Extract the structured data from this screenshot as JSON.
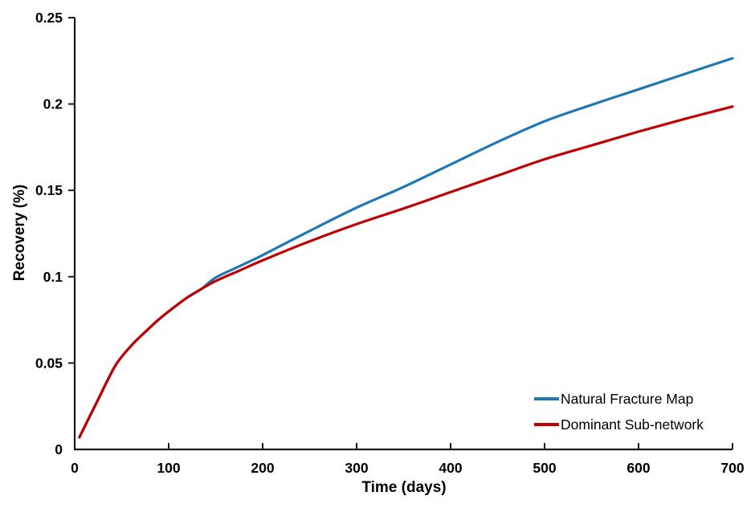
{
  "chart_data": {
    "type": "line",
    "title": "",
    "xlabel": "Time (days)",
    "ylabel": "Recovery (%)",
    "xlim": [
      0,
      700
    ],
    "ylim": [
      0,
      0.25
    ],
    "grid": false,
    "legend_position": "inside-bottom-right",
    "background": "#ffffff",
    "axis_color": "#1a1a1a",
    "text_color": "#000000",
    "x_ticks": {
      "values": [
        0,
        100,
        200,
        300,
        400,
        500,
        600,
        700
      ],
      "labels": [
        "0",
        "100",
        "200",
        "300",
        "400",
        "500",
        "600",
        "700"
      ]
    },
    "y_ticks": {
      "values": [
        0,
        0.05,
        0.1,
        0.15,
        0.2,
        0.25
      ],
      "labels": [
        "0",
        "0.05",
        "0.1",
        "0.15",
        "0.2",
        "0.25"
      ]
    },
    "x": [
      5,
      15,
      25,
      35,
      45,
      60,
      75,
      90,
      105,
      120,
      135,
      150,
      175,
      200,
      250,
      300,
      350,
      400,
      450,
      500,
      550,
      600,
      650,
      700
    ],
    "series": [
      {
        "name": "Natural Fracture Map",
        "color": "#1f77b4",
        "values": [
          0.007,
          0.018,
          0.029,
          0.04,
          0.05,
          0.06,
          0.068,
          0.0755,
          0.082,
          0.088,
          0.093,
          0.0995,
          0.106,
          0.1125,
          0.1265,
          0.14,
          0.152,
          0.165,
          0.178,
          0.19,
          0.1995,
          0.2085,
          0.2175,
          0.2265
        ]
      },
      {
        "name": "Dominant Sub-network",
        "color": "#c00000",
        "values": [
          0.007,
          0.018,
          0.029,
          0.04,
          0.05,
          0.06,
          0.068,
          0.0755,
          0.082,
          0.088,
          0.093,
          0.0975,
          0.1035,
          0.1095,
          0.1205,
          0.1305,
          0.1395,
          0.149,
          0.1585,
          0.168,
          0.176,
          0.184,
          0.1915,
          0.1985
        ]
      }
    ]
  }
}
